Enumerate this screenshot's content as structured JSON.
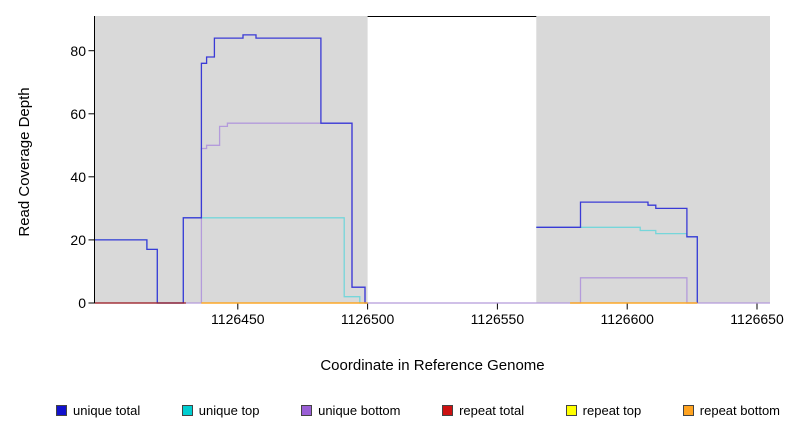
{
  "chart_data": {
    "type": "line",
    "title": "",
    "xlabel": "Coordinate in Reference Genome",
    "ylabel": "Read Coverage Depth",
    "xlim": [
      1126395,
      1126655
    ],
    "ylim": [
      0,
      91
    ],
    "x_ticks": [
      1126450,
      1126500,
      1126550,
      1126600,
      1126650
    ],
    "y_ticks": [
      0,
      20,
      40,
      60,
      80
    ],
    "grid": false,
    "legend_position": "bottom",
    "panel_color": "#d9d9d9",
    "background_panels": [
      {
        "x0": 1126395,
        "x1": 1126500
      },
      {
        "x0": 1126565,
        "x1": 1126655
      }
    ],
    "coverage_gap": {
      "x0": 1126500,
      "x1": 1126565
    },
    "series": [
      {
        "name": "unique top",
        "line_color": "#76d6da",
        "legend_color": "#00ced1",
        "segments": [
          [
            [
              1126395,
              20
            ],
            [
              1126415,
              20
            ],
            [
              1126415,
              17
            ],
            [
              1126419,
              17
            ],
            [
              1126419,
              0
            ],
            [
              1126429,
              0
            ],
            [
              1126429,
              27
            ],
            [
              1126491,
              27
            ],
            [
              1126491,
              2
            ],
            [
              1126497,
              2
            ],
            [
              1126497,
              0
            ],
            [
              1126500,
              0
            ]
          ],
          [
            [
              1126565,
              24
            ],
            [
              1126605,
              24
            ],
            [
              1126605,
              23
            ],
            [
              1126611,
              23
            ],
            [
              1126611,
              22
            ],
            [
              1126623,
              22
            ],
            [
              1126623,
              21
            ],
            [
              1126627,
              21
            ],
            [
              1126627,
              0
            ]
          ]
        ]
      },
      {
        "name": "unique bottom",
        "line_color": "#b49bdb",
        "legend_color": "#9a5fd6",
        "segments": [
          [
            [
              1126395,
              0
            ],
            [
              1126436,
              0
            ],
            [
              1126436,
              49
            ],
            [
              1126438,
              49
            ],
            [
              1126438,
              50
            ],
            [
              1126443,
              50
            ],
            [
              1126443,
              56
            ],
            [
              1126446,
              56
            ],
            [
              1126446,
              57
            ],
            [
              1126494,
              57
            ],
            [
              1126494,
              5
            ],
            [
              1126499,
              5
            ],
            [
              1126499,
              0
            ],
            [
              1126582,
              0
            ],
            [
              1126582,
              8
            ],
            [
              1126623,
              8
            ],
            [
              1126623,
              0
            ],
            [
              1126655,
              0
            ]
          ]
        ]
      },
      {
        "name": "unique total",
        "line_color": "#3a3ad6",
        "legend_color": "#1212cd",
        "segments": [
          [
            [
              1126395,
              20
            ],
            [
              1126415,
              20
            ],
            [
              1126415,
              17
            ],
            [
              1126419,
              17
            ],
            [
              1126419,
              0
            ],
            [
              1126429,
              0
            ],
            [
              1126429,
              27
            ],
            [
              1126436,
              27
            ],
            [
              1126436,
              76
            ],
            [
              1126438,
              76
            ],
            [
              1126438,
              78
            ],
            [
              1126441,
              78
            ],
            [
              1126441,
              84
            ],
            [
              1126452,
              84
            ],
            [
              1126452,
              85
            ],
            [
              1126457,
              85
            ],
            [
              1126457,
              84
            ],
            [
              1126482,
              84
            ],
            [
              1126482,
              57
            ],
            [
              1126494,
              57
            ],
            [
              1126494,
              5
            ],
            [
              1126499,
              5
            ],
            [
              1126499,
              0
            ],
            [
              1126500,
              0
            ]
          ],
          [
            [
              1126565,
              24
            ],
            [
              1126582,
              24
            ],
            [
              1126582,
              32
            ],
            [
              1126608,
              32
            ],
            [
              1126608,
              31
            ],
            [
              1126611,
              31
            ],
            [
              1126611,
              30
            ],
            [
              1126623,
              30
            ],
            [
              1126623,
              21
            ],
            [
              1126627,
              21
            ],
            [
              1126627,
              0
            ]
          ]
        ]
      },
      {
        "name": "repeat total",
        "line_color": "#9e1c1c",
        "legend_color": "#cd1111",
        "segments": [
          [
            [
              1126395,
              0
            ],
            [
              1126430,
              0
            ]
          ]
        ]
      },
      {
        "name": "repeat top",
        "line_color": "#f0e000",
        "legend_color": "#ffff00",
        "segments": [
          [
            [
              1126436,
              0
            ],
            [
              1126500,
              0
            ]
          ],
          [
            [
              1126578,
              0
            ],
            [
              1126627,
              0
            ]
          ]
        ]
      },
      {
        "name": "repeat bottom",
        "line_color": "#ff9d26",
        "legend_color": "#ffa320",
        "segments": [
          [
            [
              1126436,
              0
            ],
            [
              1126500,
              0
            ]
          ],
          [
            [
              1126578,
              0
            ],
            [
              1126627,
              0
            ]
          ]
        ]
      }
    ],
    "legend_order": [
      "unique total",
      "unique top",
      "unique bottom",
      "repeat total",
      "repeat top",
      "repeat bottom"
    ]
  }
}
